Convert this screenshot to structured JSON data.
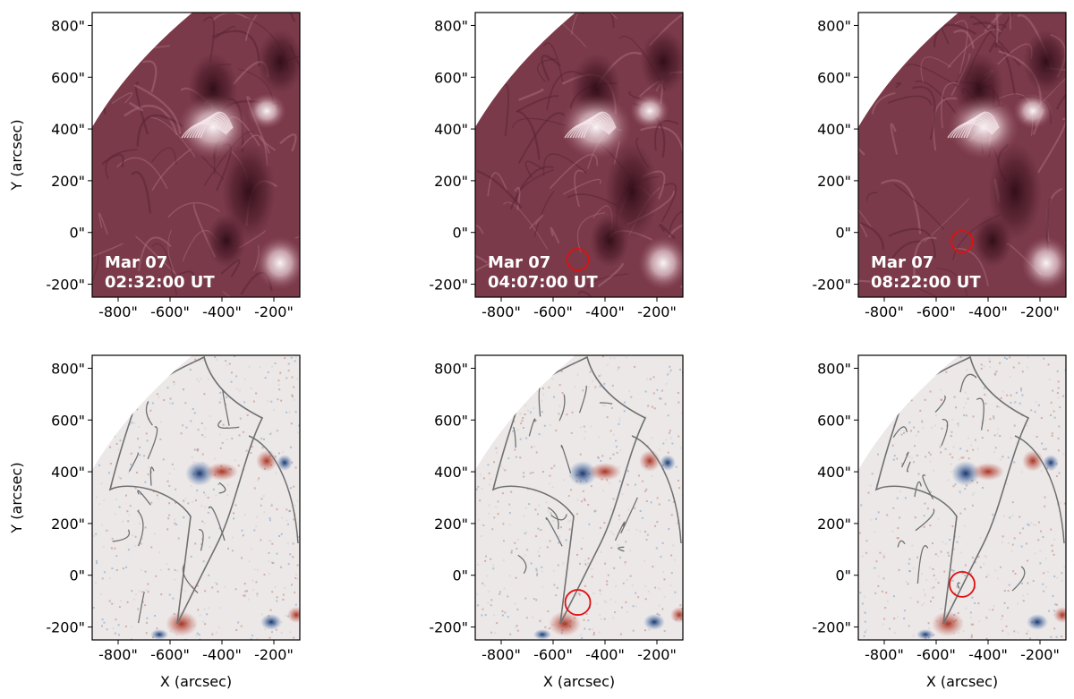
{
  "x_ticks": [
    "-800\"",
    "-600\"",
    "-400\"",
    "-200\""
  ],
  "y_ticks": [
    "800\"",
    "600\"",
    "400\"",
    "200\"",
    "0\"",
    "-200\""
  ],
  "y_axis_label": "Y (arcsec)",
  "x_axis_label": "X (arcsec)",
  "panels_top": [
    {
      "date": "Mar 07",
      "time": "02:32:00 UT",
      "marker": false
    },
    {
      "date": "Mar 07",
      "time": "04:07:00 UT",
      "marker": true
    },
    {
      "date": "Mar 07",
      "time": "08:22:00 UT",
      "marker": true
    }
  ],
  "panels_bottom": [
    {
      "marker": false
    },
    {
      "marker": true
    },
    {
      "marker": true
    }
  ],
  "colors": {
    "euv_bg": "#7a3a4a",
    "euv_dark": "#3d1520",
    "euv_bright": "#f4e6ea",
    "mag_bg": "#ece8e8",
    "contour": "#707070",
    "marker": "#e01010",
    "positive": "#b02010",
    "negative": "#1a4a8a"
  }
}
